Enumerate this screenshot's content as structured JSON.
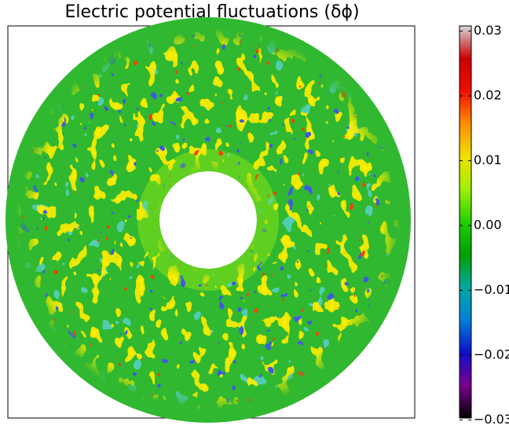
{
  "chart_data": {
    "type": "polar-field",
    "title": "Electric potential fluctuations (δϕ)",
    "clim": [
      -0.0297,
      0.0308
    ],
    "cticks": [
      0.03,
      0.02,
      0.01,
      {
        "value": 0,
        "label": "0.00"
      },
      {
        "value": -0.01,
        "label": "−0.01"
      },
      {
        "value": -0.02,
        "label": "−0.02"
      },
      {
        "value": -0.03,
        "label": "−0.03"
      }
    ],
    "colormap": [
      "#000000",
      "#7a0090",
      "#1010c8",
      "#0080d8",
      "#00a8a0",
      "#00a000",
      "#20d000",
      "#a0f000",
      "#f0e000",
      "#ff9000",
      "#f01000",
      "#c80000",
      "#d8d8d8"
    ]
  }
}
